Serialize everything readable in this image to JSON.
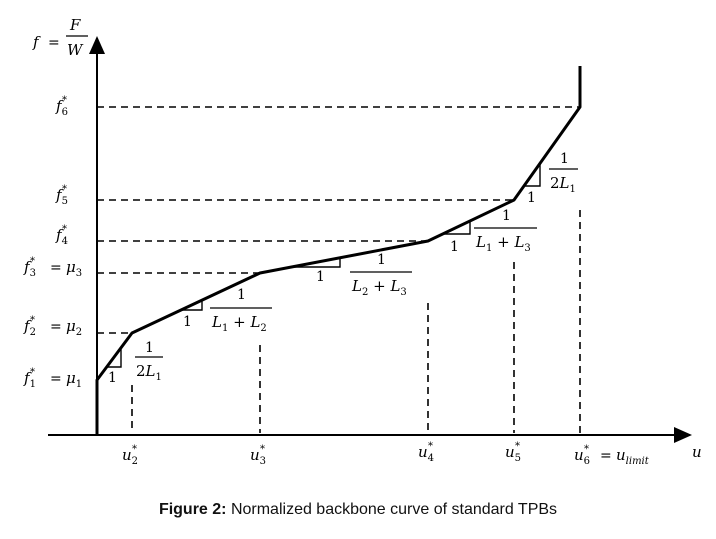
{
  "axes": {
    "y_label": {
      "f": "f",
      "eq": "=",
      "num": "F",
      "den": "W"
    },
    "x_label": "u"
  },
  "y_ticks": [
    {
      "base": "f",
      "sub": "1",
      "sup": "*",
      "rhs": "μ",
      "rhs_sub": "1"
    },
    {
      "base": "f",
      "sub": "2",
      "sup": "*",
      "rhs": "μ",
      "rhs_sub": "2"
    },
    {
      "base": "f",
      "sub": "3",
      "sup": "*",
      "rhs": "μ",
      "rhs_sub": "3"
    },
    {
      "base": "f",
      "sub": "4",
      "sup": "*"
    },
    {
      "base": "f",
      "sub": "5",
      "sup": "*"
    },
    {
      "base": "f",
      "sub": "6",
      "sup": "*"
    }
  ],
  "x_ticks": [
    {
      "base": "u",
      "sub": "2",
      "sup": "*"
    },
    {
      "base": "u",
      "sub": "3",
      "sup": "*"
    },
    {
      "base": "u",
      "sub": "4",
      "sup": "*"
    },
    {
      "base": "u",
      "sub": "5",
      "sup": "*"
    },
    {
      "base": "u",
      "sub": "6",
      "sup": "*",
      "rhs": "u",
      "rhs_sub": "limit"
    }
  ],
  "slopes": [
    {
      "run": "1",
      "num": "1",
      "den": "2L",
      "den_sub": "1"
    },
    {
      "run": "1",
      "num": "1",
      "den": "L₁ + L₂"
    },
    {
      "run": "1",
      "num": "1",
      "den": "L₂ + L₃"
    },
    {
      "run": "1",
      "num": "1",
      "den": "L₁ + L₃"
    },
    {
      "run": "1",
      "num": "1",
      "den": "2L",
      "den_sub": "1"
    }
  ],
  "caption": {
    "label": "Figure 2:",
    "text": " Normalized backbone curve of standard TPBs"
  }
}
